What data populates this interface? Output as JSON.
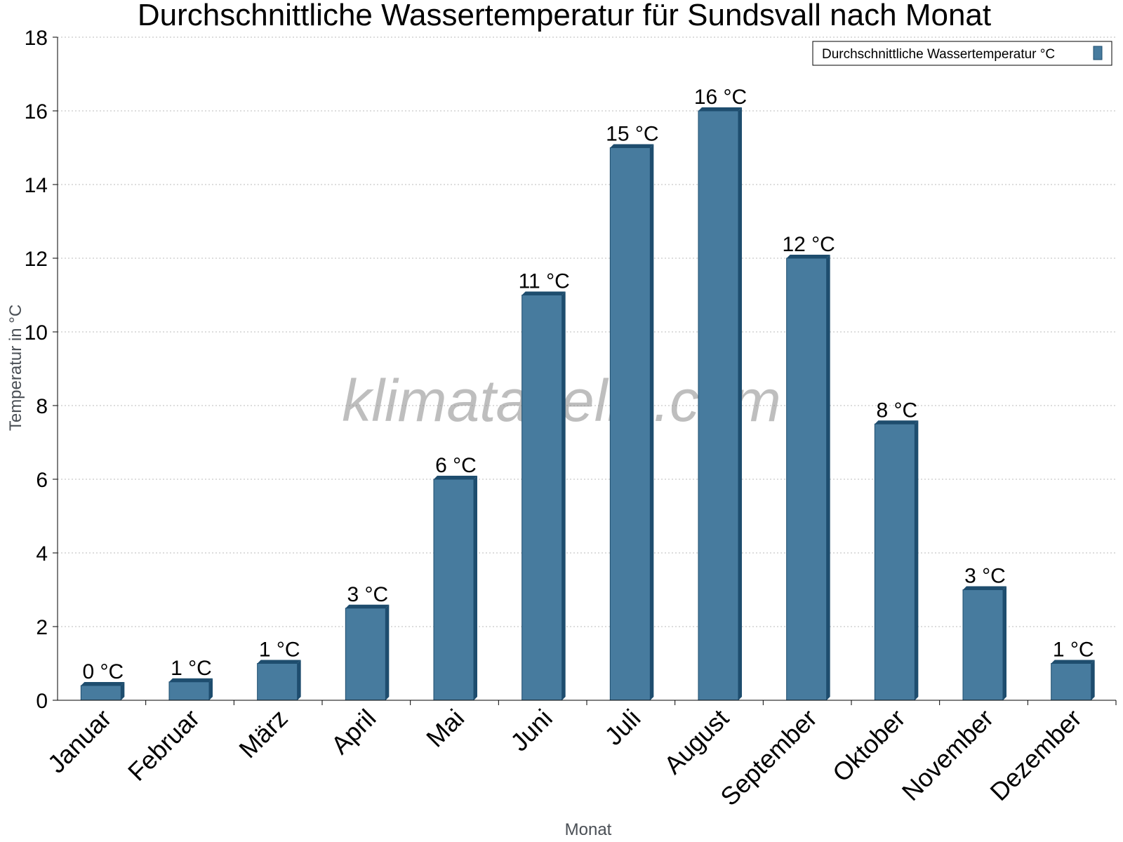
{
  "chart_data": {
    "type": "bar",
    "title": "Durchschnittliche Wassertemperatur für Sundsvall nach Monat",
    "xlabel": "Monat",
    "ylabel": "Temperatur in °C",
    "ylim": [
      0,
      18
    ],
    "yticks": [
      0,
      2,
      4,
      6,
      8,
      10,
      12,
      14,
      16,
      18
    ],
    "grid": true,
    "legend_position": "top-right",
    "categories": [
      "Januar",
      "Februar",
      "März",
      "April",
      "Mai",
      "Juni",
      "Juli",
      "August",
      "September",
      "Oktober",
      "November",
      "Dezember"
    ],
    "series": [
      {
        "name": "Durchschnittliche Wassertemperatur °C",
        "values": [
          0.4,
          0.5,
          1.0,
          2.5,
          6.0,
          11.0,
          15.0,
          16.0,
          12.0,
          7.5,
          3.0,
          1.0
        ],
        "labels": [
          "0 °C",
          "1 °C",
          "1 °C",
          "3 °C",
          "6 °C",
          "11 °C",
          "15 °C",
          "16 °C",
          "12 °C",
          "8 °C",
          "3 °C",
          "1 °C"
        ],
        "color": "#477b9e",
        "side_color": "#1e4d6e"
      }
    ]
  },
  "watermark": "klimatabelle.com"
}
